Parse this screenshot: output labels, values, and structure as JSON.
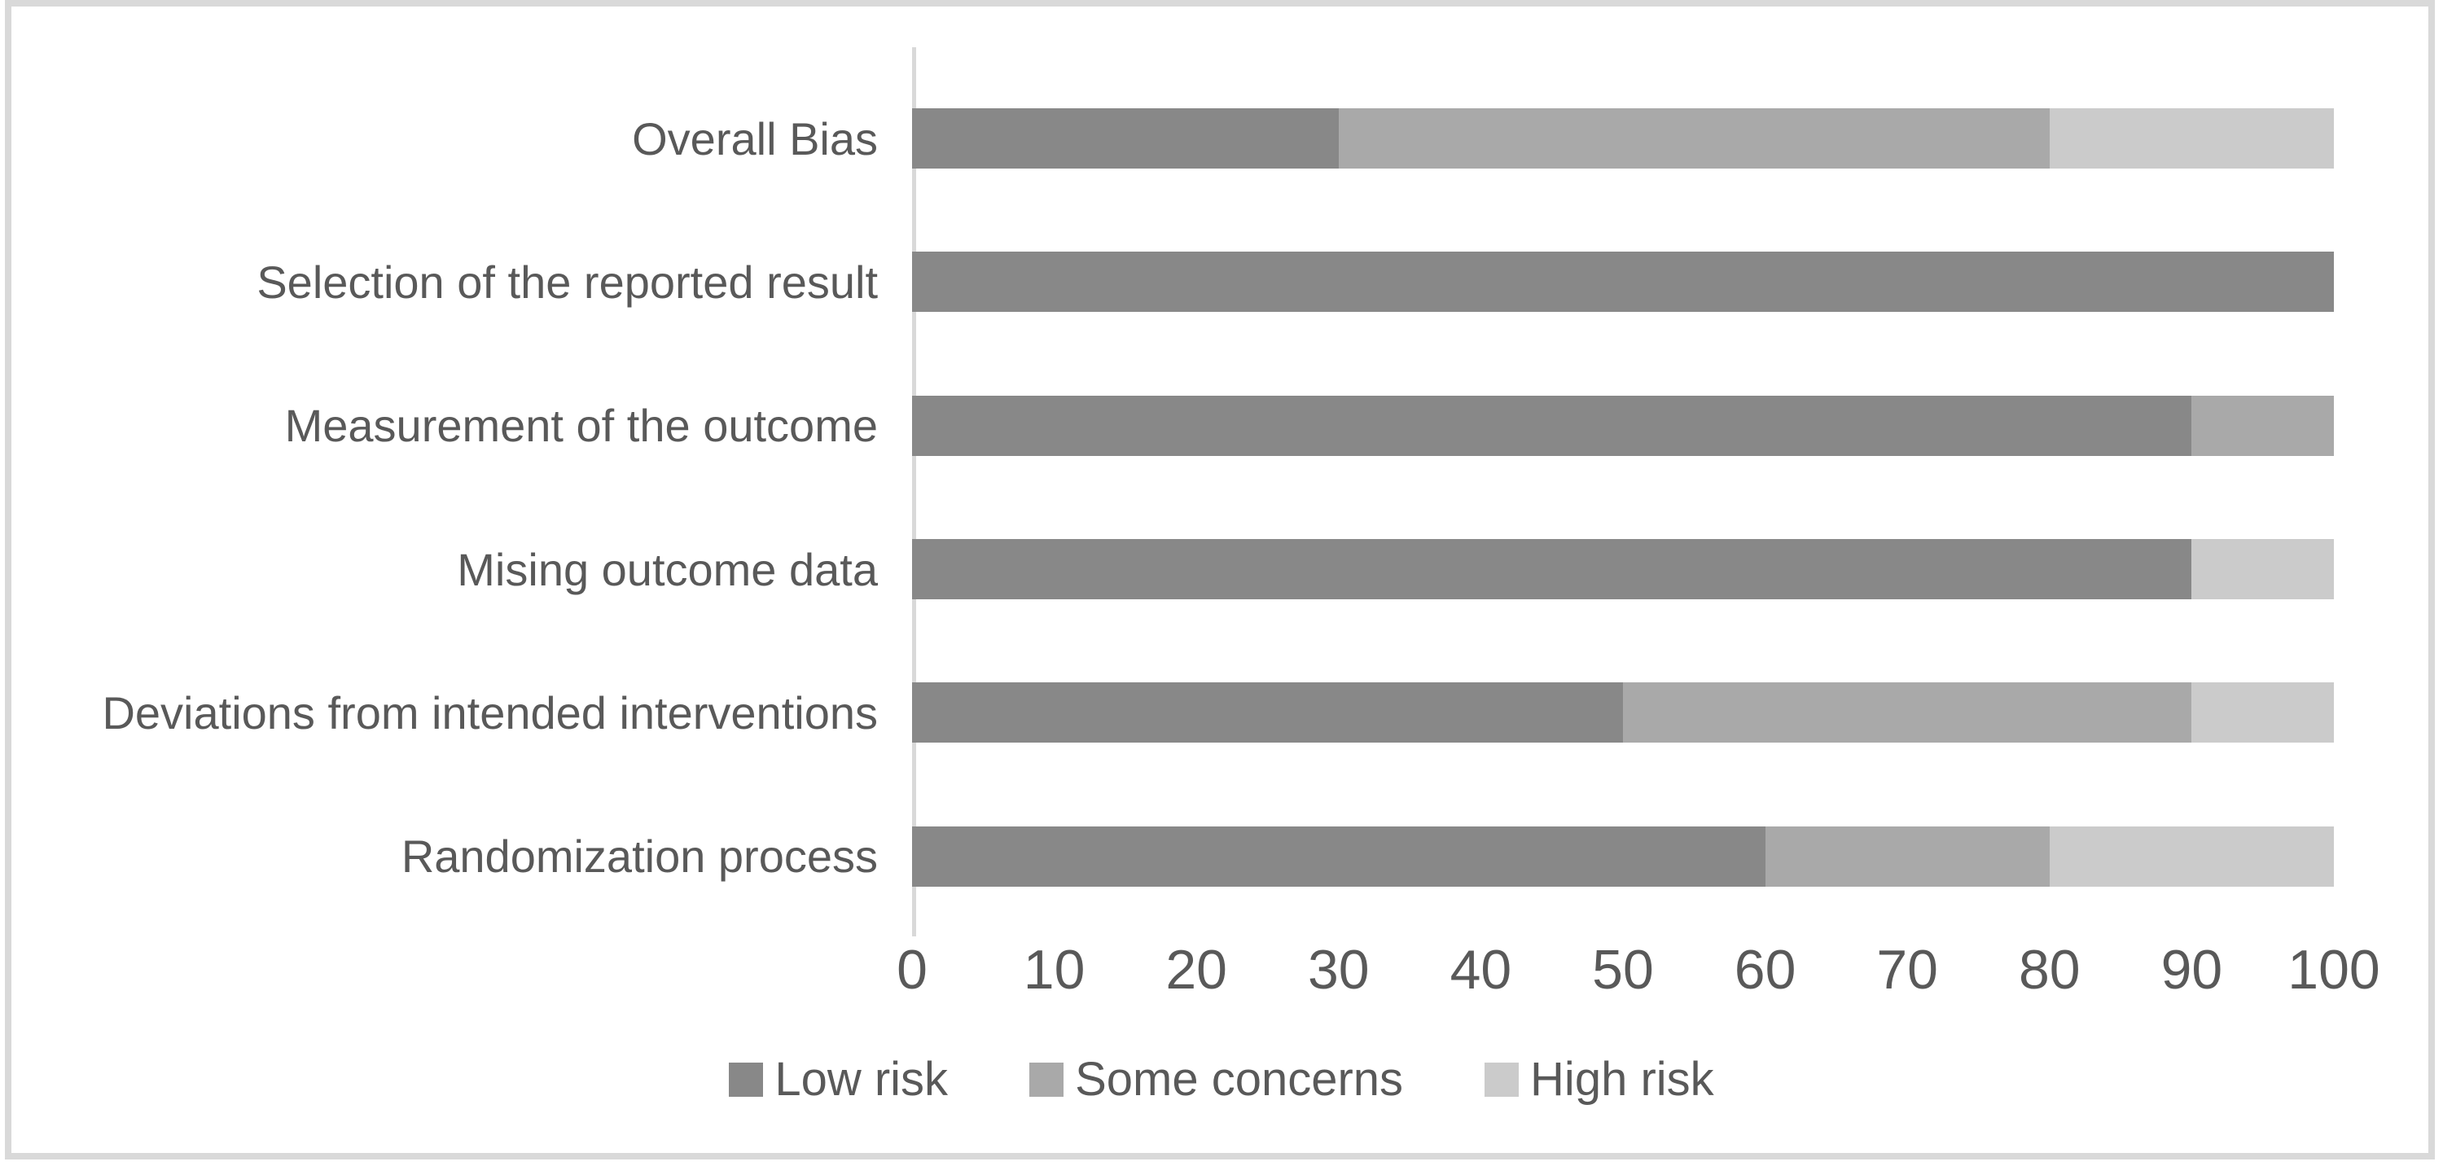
{
  "figure": {
    "background": "#ffffff",
    "frame_border_color": "#d9d9d9"
  },
  "chart_data": {
    "type": "bar",
    "orientation": "horizontal",
    "stacked": true,
    "title": "",
    "xlabel": "",
    "ylabel": "",
    "grid": false,
    "axis_line_color": "#d9d9d9",
    "text_color": "#595959",
    "categories_top_to_bottom": [
      "Overall Bias",
      "Selection of the reported result",
      "Measurement of the outcome",
      "Mising outcome data",
      "Deviations from intended interventions",
      "Randomization process"
    ],
    "series": [
      {
        "name": "Low risk",
        "color": "#888888",
        "values": [
          30,
          100,
          90,
          90,
          50,
          60
        ]
      },
      {
        "name": "Some concerns",
        "color": "#a9a9a9",
        "values": [
          50,
          0,
          10,
          0,
          40,
          20
        ]
      },
      {
        "name": "High risk",
        "color": "#cbcbcb",
        "values": [
          20,
          0,
          0,
          10,
          10,
          20
        ]
      }
    ],
    "x_axis": {
      "min": 0,
      "max": 100,
      "ticks": [
        0,
        10,
        20,
        30,
        40,
        50,
        60,
        70,
        80,
        90,
        100
      ]
    },
    "legend": {
      "position": "bottom",
      "labels": [
        "Low risk",
        "Some concerns",
        "High risk"
      ]
    }
  }
}
